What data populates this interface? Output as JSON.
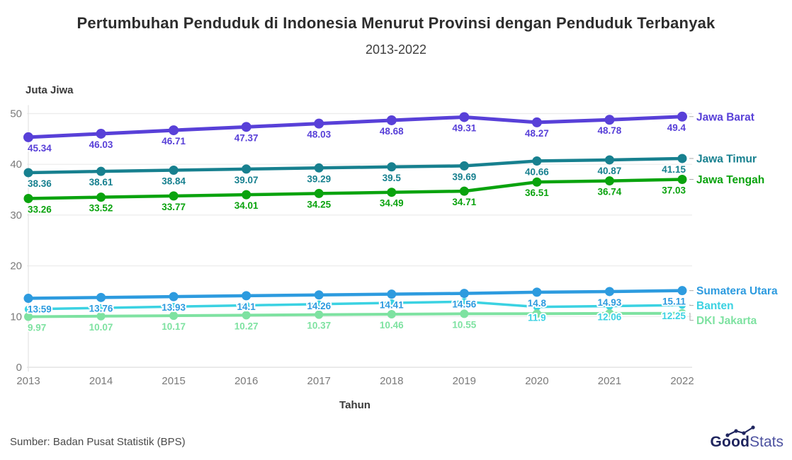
{
  "title": "Pertumbuhan Penduduk di Indonesia Menurut Provinsi dengan Penduduk Terbanyak",
  "subtitle": "2013-2022",
  "y_axis_title": "Juta Jiwa",
  "x_axis_title": "Tahun",
  "source": "Sumber: Badan Pusat Statistik (BPS)",
  "logo": {
    "part1": "Good",
    "part2": "Stats"
  },
  "chart_data": {
    "type": "line",
    "title": "Pertumbuhan Penduduk di Indonesia Menurut Provinsi dengan Penduduk Terbanyak",
    "subtitle": "2013-2022",
    "xlabel": "Tahun",
    "ylabel": "Juta Jiwa",
    "x": [
      "2013",
      "2014",
      "2015",
      "2016",
      "2017",
      "2018",
      "2019",
      "2020",
      "2021",
      "2022"
    ],
    "ylim": [
      0,
      50
    ],
    "yticks": [
      0,
      10,
      20,
      30,
      40,
      50
    ],
    "grid": true,
    "legend_position": "right-of-line-ends",
    "series": [
      {
        "name": "Jawa Barat",
        "color": "#5840d8",
        "values": [
          45.34,
          46.03,
          46.71,
          47.37,
          48.03,
          48.68,
          49.31,
          48.27,
          48.78,
          49.4
        ],
        "labels": [
          "45.34",
          "46.03",
          "46.71",
          "47.37",
          "48.03",
          "48.68",
          "49.31",
          "48.27",
          "48.78",
          "49.4"
        ]
      },
      {
        "name": "Jawa Timur",
        "color": "#17808f",
        "values": [
          38.36,
          38.61,
          38.84,
          39.07,
          39.29,
          39.5,
          39.69,
          40.66,
          40.87,
          41.15
        ],
        "labels": [
          "38.36",
          "38.61",
          "38.84",
          "39.07",
          "39.29",
          "39.5",
          "39.69",
          "40.66",
          "40.87",
          "41.15"
        ]
      },
      {
        "name": "Jawa Tengah",
        "color": "#0aa30e",
        "values": [
          33.26,
          33.52,
          33.77,
          34.01,
          34.25,
          34.49,
          34.71,
          36.51,
          36.74,
          37.03
        ],
        "labels": [
          "33.26",
          "33.52",
          "33.77",
          "34.01",
          "34.25",
          "34.49",
          "34.71",
          "36.51",
          "36.74",
          "37.03"
        ]
      },
      {
        "name": "Sumatera Utara",
        "color": "#2d9bdf",
        "values": [
          13.59,
          13.76,
          13.93,
          14.1,
          14.26,
          14.41,
          14.56,
          14.8,
          14.93,
          15.11
        ],
        "labels": [
          "13.59",
          "13.76",
          "13.93",
          "14.1",
          "14.26",
          "14.41",
          "14.56",
          "14.8",
          "14.93",
          "15.11"
        ]
      },
      {
        "name": "Banten",
        "color": "#3bd2e2",
        "values": [
          11.45,
          11.7,
          11.96,
          12.2,
          12.45,
          12.69,
          12.93,
          11.9,
          12.06,
          12.25
        ],
        "labels": [
          null,
          null,
          null,
          null,
          null,
          null,
          null,
          "11.9",
          "12.06",
          "12.25"
        ]
      },
      {
        "name": "DKI Jakarta",
        "color": "#7ee2a1",
        "values": [
          9.97,
          10.07,
          10.17,
          10.27,
          10.37,
          10.46,
          10.55,
          10.56,
          10.61,
          10.64
        ],
        "labels": [
          "9.97",
          "10.07",
          "10.17",
          "10.27",
          "10.37",
          "10.46",
          "10.55",
          null,
          null,
          null
        ]
      }
    ]
  }
}
